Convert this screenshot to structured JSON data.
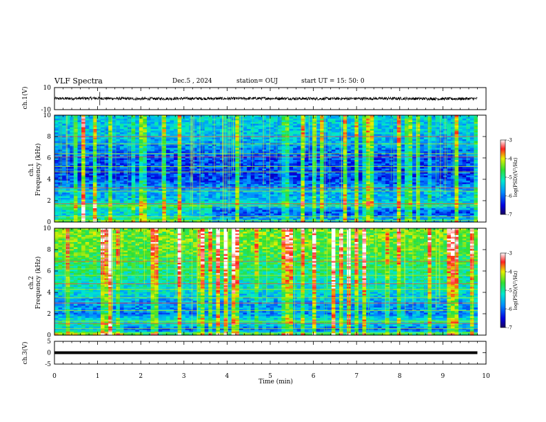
{
  "header": {
    "title": "VLF Spectra",
    "date": "Dec.5  , 2024",
    "station": "station= OUJ",
    "start": "start  UT  =   15: 50: 0"
  },
  "colors": {
    "low": "#00007a",
    "mid": "#00d8a0",
    "high": "#ff1010"
  },
  "chart_data": [
    {
      "type": "line",
      "panel": "ch1-waveform",
      "ylabel": "ch.1(V)",
      "ylim": [
        -10,
        10
      ],
      "ytick_labels": [
        "10",
        "-10"
      ],
      "x": [
        0,
        1,
        2,
        3,
        4,
        5,
        6,
        7,
        8,
        9,
        9.8
      ],
      "values": [
        0,
        0.3,
        -0.2,
        0.1,
        0,
        0.2,
        -0.1,
        0,
        0.1,
        -0.2,
        0
      ]
    },
    {
      "type": "heatmap",
      "panel": "ch1-spectrogram",
      "ylabel": "ch.1\nFrequency  (kHz)",
      "ylabel_line1": "ch.1",
      "ylabel_line2": "Frequency  (kHz)",
      "ylim": [
        0,
        10
      ],
      "ytick_labels": [
        "0",
        "2",
        "4",
        "6",
        "8",
        "10"
      ],
      "xlim": [
        0,
        9.8
      ],
      "colorbar_label": "log(PSD)(V²/Hz)",
      "colorbar_ticks": [
        "-3",
        "-4",
        "-5",
        "-6",
        "-7"
      ],
      "clim": [
        -7,
        -3
      ],
      "noise_band_khz": [
        {
          "freq": 0.2,
          "value": -4.8
        },
        {
          "freq": 0.5,
          "value": -5.2
        },
        {
          "freq": 1.0,
          "value": -5.4
        },
        {
          "freq": 1.5,
          "value": -4.7
        },
        {
          "freq": 2.0,
          "value": -5.5
        },
        {
          "freq": 3.0,
          "value": -5.6
        },
        {
          "freq": 4.0,
          "value": -6.2
        },
        {
          "freq": 6.0,
          "value": -6.1
        },
        {
          "freq": 8.0,
          "value": -5.5
        },
        {
          "freq": 10.0,
          "value": -5.4
        }
      ]
    },
    {
      "type": "heatmap",
      "panel": "ch2-spectrogram",
      "ylabel_line1": "ch.2",
      "ylabel_line2": "Frequency  (kHz)",
      "ylim": [
        0,
        10
      ],
      "ytick_labels": [
        "0",
        "2",
        "4",
        "6",
        "8",
        "10"
      ],
      "xlim": [
        0,
        9.8
      ],
      "colorbar_label": "log(PSD)(V²/Hz)",
      "colorbar_ticks": [
        "-3",
        "-4",
        "-5",
        "-6",
        "-7"
      ],
      "clim": [
        -7,
        -3
      ],
      "noise_band_khz": [
        {
          "freq": 0.2,
          "value": -4.6
        },
        {
          "freq": 0.5,
          "value": -5.6
        },
        {
          "freq": 1.0,
          "value": -4.9
        },
        {
          "freq": 1.5,
          "value": -5.3
        },
        {
          "freq": 2.0,
          "value": -5.8
        },
        {
          "freq": 3.0,
          "value": -5.7
        },
        {
          "freq": 4.0,
          "value": -5.3
        },
        {
          "freq": 6.0,
          "value": -4.9
        },
        {
          "freq": 8.0,
          "value": -4.5
        },
        {
          "freq": 10.0,
          "value": -4.4
        }
      ]
    },
    {
      "type": "line",
      "panel": "ch3-waveform",
      "ylabel": "ch.3(V)",
      "ylim": [
        -5,
        5
      ],
      "ytick_labels": [
        "5",
        "0",
        "-5"
      ],
      "x": [
        0,
        9.8
      ],
      "values": [
        0,
        0
      ]
    }
  ],
  "xaxis": {
    "label": "Time  (min)",
    "xlim": [
      0,
      10
    ],
    "tick_labels": [
      "0",
      "1",
      "2",
      "3",
      "4",
      "5",
      "6",
      "7",
      "8",
      "9",
      "10"
    ]
  }
}
